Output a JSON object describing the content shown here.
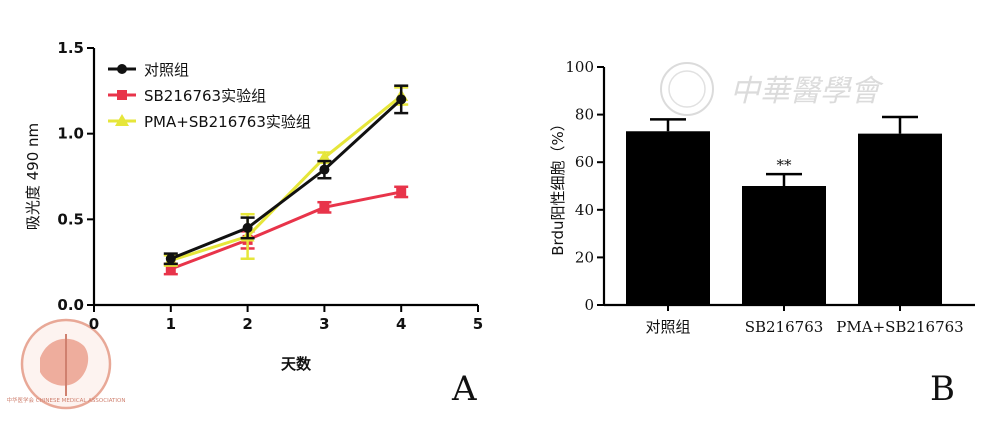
{
  "chart_data": [
    {
      "type": "line",
      "panel": "A",
      "xlabel": "天数",
      "ylabel": "吸光度 490 nm",
      "xlim": [
        0,
        5
      ],
      "ylim": [
        0,
        1.5
      ],
      "xticks": [
        "0",
        "1",
        "2",
        "3",
        "4",
        "5"
      ],
      "yticks": [
        "0.0",
        "0.5",
        "1.0",
        "1.5"
      ],
      "legend_position": "top-left",
      "x": [
        1,
        2,
        3,
        4
      ],
      "series": [
        {
          "name": "对照组",
          "color": "#111111",
          "marker": "circle",
          "values": [
            0.27,
            0.45,
            0.79,
            1.2
          ],
          "errors": [
            0.03,
            0.06,
            0.05,
            0.08
          ]
        },
        {
          "name": "SB216763实验组",
          "color": "#e8344a",
          "marker": "square",
          "values": [
            0.21,
            0.38,
            0.57,
            0.66
          ],
          "errors": [
            0.03,
            0.05,
            0.03,
            0.03
          ]
        },
        {
          "name": "PMA+SB216763实验组",
          "color": "#e6e63a",
          "marker": "triangle",
          "values": [
            0.26,
            0.4,
            0.86,
            1.22
          ],
          "errors": [
            0.03,
            0.13,
            0.03,
            0.05
          ]
        }
      ]
    },
    {
      "type": "bar",
      "panel": "B",
      "ylabel": "Brdu阳性细胞（%）",
      "ylim": [
        0,
        100
      ],
      "yticks": [
        "0",
        "20",
        "40",
        "60",
        "80",
        "100"
      ],
      "categories": [
        "对照组",
        "SB216763",
        "PMA+SB216763"
      ],
      "values": [
        73,
        50,
        72
      ],
      "errors": [
        5,
        5,
        7
      ],
      "annotations": [
        "",
        "**",
        ""
      ],
      "bar_color": "#000000"
    }
  ],
  "watermark": {
    "text": "中華醫學會"
  },
  "logo": {
    "text": "中华医学会 CHINESE MEDICAL ASSOCIATION"
  }
}
